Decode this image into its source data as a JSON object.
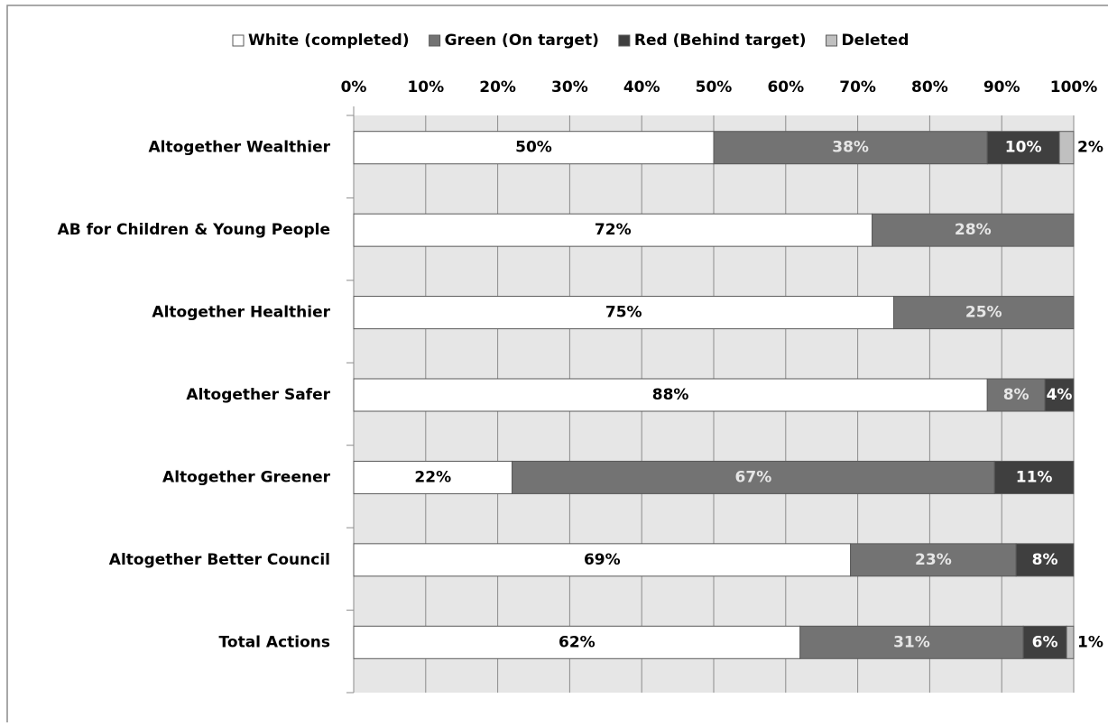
{
  "chart_data": {
    "type": "stacked-bar-horizontal",
    "categories": [
      "Altogether Wealthier",
      "AB for Children & Young People",
      "Altogether Healthier",
      "Altogether Safer",
      "Altogether Greener",
      "Altogether Better Council",
      "Total Actions"
    ],
    "series": [
      {
        "name": "White (completed)",
        "color": "#ffffff",
        "values": [
          50,
          72,
          75,
          88,
          22,
          69,
          62
        ],
        "value_labels": [
          "50%",
          "72%",
          "75%",
          "88%",
          "22%",
          "69%",
          "62%"
        ]
      },
      {
        "name": "Green (On target)",
        "color": "#737373",
        "values": [
          38,
          28,
          25,
          8,
          67,
          23,
          31
        ],
        "value_labels": [
          "38%",
          "28%",
          "25%",
          "8%",
          "67%",
          "23%",
          "31%"
        ]
      },
      {
        "name": "Red (Behind target)",
        "color": "#3f3f3f",
        "values": [
          10,
          null,
          null,
          4,
          11,
          8,
          6
        ],
        "value_labels": [
          "10%",
          null,
          null,
          "4%",
          "11%",
          "8%",
          "6%"
        ]
      },
      {
        "name": "Deleted",
        "color": "#c0c0c0",
        "values": [
          2,
          null,
          null,
          null,
          null,
          null,
          1
        ],
        "value_labels": [
          "2%",
          null,
          null,
          null,
          null,
          null,
          "1%"
        ]
      }
    ],
    "xlim": [
      0,
      100
    ],
    "xticks": [
      {
        "value": 0,
        "label": "0%"
      },
      {
        "value": 10,
        "label": "10%"
      },
      {
        "value": 20,
        "label": "20%"
      },
      {
        "value": 30,
        "label": "30%"
      },
      {
        "value": 40,
        "label": "40%"
      },
      {
        "value": 50,
        "label": "50%"
      },
      {
        "value": 60,
        "label": "60%"
      },
      {
        "value": 70,
        "label": "70%"
      },
      {
        "value": 80,
        "label": "80%"
      },
      {
        "value": 90,
        "label": "90%"
      },
      {
        "value": 100,
        "label": "100%"
      }
    ],
    "grid": true,
    "legend": "top"
  }
}
